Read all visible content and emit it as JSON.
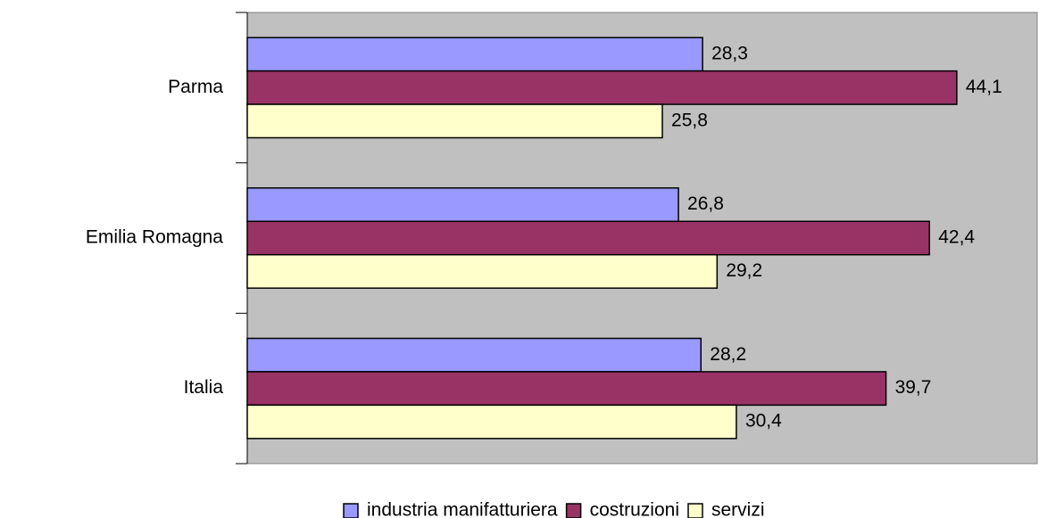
{
  "chart_data": {
    "type": "hbar",
    "categories": [
      "Parma",
      "Emilia Romagna",
      "Italia"
    ],
    "series": [
      {
        "name": "industria manifatturiera",
        "color": "#9999ff",
        "values": [
          28.3,
          26.8,
          28.2
        ],
        "value_labels": [
          "28,3",
          "26,8",
          "28,2"
        ]
      },
      {
        "name": "costruzioni",
        "color": "#993366",
        "values": [
          44.1,
          42.4,
          39.7
        ],
        "value_labels": [
          "44,1",
          "42,4",
          "39,7"
        ]
      },
      {
        "name": "servizi",
        "color": "#ffffcc",
        "values": [
          25.8,
          29.2,
          30.4
        ],
        "value_labels": [
          "25,8",
          "29,2",
          "30,4"
        ]
      }
    ],
    "xlim": [
      0,
      49.1
    ],
    "legend": "bottom"
  }
}
